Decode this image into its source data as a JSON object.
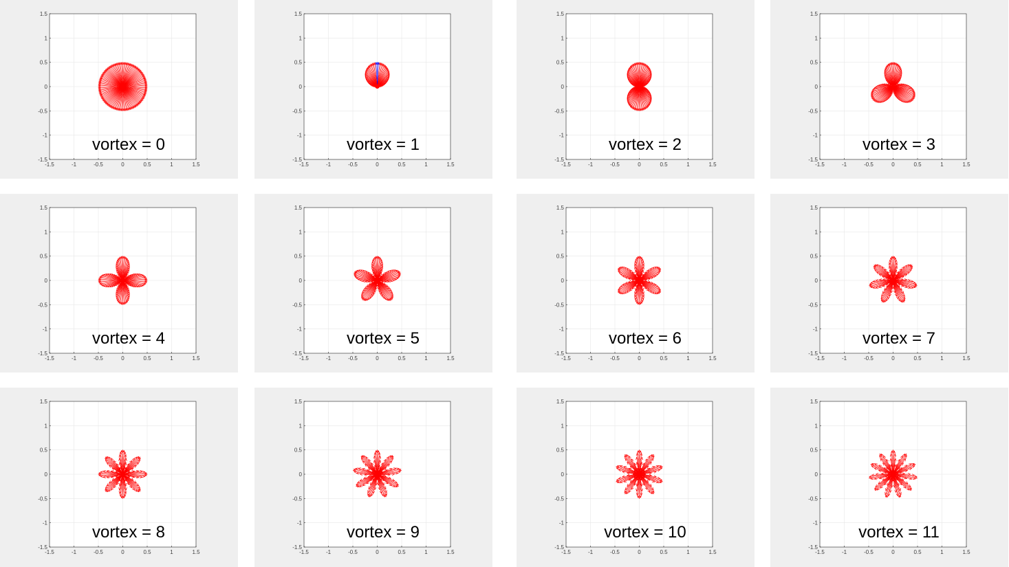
{
  "chart_data": [
    {
      "type": "quiver",
      "label": "vortex = 0",
      "vortex": 0,
      "xlim": [
        -1.5,
        1.5
      ],
      "ylim": [
        -1.5,
        1.5
      ],
      "xticks": [
        -1.5,
        -1,
        -0.5,
        0,
        0.5,
        1,
        1.5
      ],
      "yticks": [
        -1.5,
        -1,
        -0.5,
        0,
        0.5,
        1,
        1.5
      ],
      "tick_labels": [
        "-1.5",
        "-1",
        "-0.5",
        "0",
        "0.5",
        "1",
        "1.5"
      ],
      "grid": true,
      "arrow_color": "#ff0000"
    },
    {
      "type": "quiver",
      "label": "vortex = 1",
      "vortex": 1,
      "xlim": [
        -1.5,
        1.5
      ],
      "ylim": [
        -1.5,
        1.5
      ],
      "xticks": [
        -1.5,
        -1,
        -0.5,
        0,
        0.5,
        1,
        1.5
      ],
      "yticks": [
        -1.5,
        -1,
        -0.5,
        0,
        0.5,
        1,
        1.5
      ],
      "tick_labels": [
        "-1.5",
        "-1",
        "-0.5",
        "0",
        "0.5",
        "1",
        "1.5"
      ],
      "grid": true,
      "arrow_color": "#ff0000"
    },
    {
      "type": "quiver",
      "label": "vortex = 2",
      "vortex": 2,
      "xlim": [
        -1.5,
        1.5
      ],
      "ylim": [
        -1.5,
        1.5
      ],
      "xticks": [
        -1.5,
        -1,
        -0.5,
        0,
        0.5,
        1,
        1.5
      ],
      "yticks": [
        -1.5,
        -1,
        -0.5,
        0,
        0.5,
        1,
        1.5
      ],
      "tick_labels": [
        "-1.5",
        "-1",
        "-0.5",
        "0",
        "0.5",
        "1",
        "1.5"
      ],
      "grid": true,
      "arrow_color": "#ff0000"
    },
    {
      "type": "quiver",
      "label": "vortex = 3",
      "vortex": 3,
      "xlim": [
        -1.5,
        1.5
      ],
      "ylim": [
        -1.5,
        1.5
      ],
      "xticks": [
        -1.5,
        -1,
        -0.5,
        0,
        0.5,
        1,
        1.5
      ],
      "yticks": [
        -1.5,
        -1,
        -0.5,
        0,
        0.5,
        1,
        1.5
      ],
      "tick_labels": [
        "-1.5",
        "-1",
        "-0.5",
        "0",
        "0.5",
        "1",
        "1.5"
      ],
      "grid": true,
      "arrow_color": "#ff0000"
    },
    {
      "type": "quiver",
      "label": "vortex = 4",
      "vortex": 4,
      "xlim": [
        -1.5,
        1.5
      ],
      "ylim": [
        -1.5,
        1.5
      ],
      "xticks": [
        -1.5,
        -1,
        -0.5,
        0,
        0.5,
        1,
        1.5
      ],
      "yticks": [
        -1.5,
        -1,
        -0.5,
        0,
        0.5,
        1,
        1.5
      ],
      "tick_labels": [
        "-1.5",
        "-1",
        "-0.5",
        "0",
        "0.5",
        "1",
        "1.5"
      ],
      "grid": true,
      "arrow_color": "#ff0000"
    },
    {
      "type": "quiver",
      "label": "vortex = 5",
      "vortex": 5,
      "xlim": [
        -1.5,
        1.5
      ],
      "ylim": [
        -1.5,
        1.5
      ],
      "xticks": [
        -1.5,
        -1,
        -0.5,
        0,
        0.5,
        1,
        1.5
      ],
      "yticks": [
        -1.5,
        -1,
        -0.5,
        0,
        0.5,
        1,
        1.5
      ],
      "tick_labels": [
        "-1.5",
        "-1",
        "-0.5",
        "0",
        "0.5",
        "1",
        "1.5"
      ],
      "grid": true,
      "arrow_color": "#ff0000"
    },
    {
      "type": "quiver",
      "label": "vortex = 6",
      "vortex": 6,
      "xlim": [
        -1.5,
        1.5
      ],
      "ylim": [
        -1.5,
        1.5
      ],
      "xticks": [
        -1.5,
        -1,
        -0.5,
        0,
        0.5,
        1,
        1.5
      ],
      "yticks": [
        -1.5,
        -1,
        -0.5,
        0,
        0.5,
        1,
        1.5
      ],
      "tick_labels": [
        "-1.5",
        "-1",
        "-0.5",
        "0",
        "0.5",
        "1",
        "1.5"
      ],
      "grid": true,
      "arrow_color": "#ff0000"
    },
    {
      "type": "quiver",
      "label": "vortex = 7",
      "vortex": 7,
      "xlim": [
        -1.5,
        1.5
      ],
      "ylim": [
        -1.5,
        1.5
      ],
      "xticks": [
        -1.5,
        -1,
        -0.5,
        0,
        0.5,
        1,
        1.5
      ],
      "yticks": [
        -1.5,
        -1,
        -0.5,
        0,
        0.5,
        1,
        1.5
      ],
      "tick_labels": [
        "-1.5",
        "-1",
        "-0.5",
        "0",
        "0.5",
        "1",
        "1.5"
      ],
      "grid": true,
      "arrow_color": "#ff0000"
    },
    {
      "type": "quiver",
      "label": "vortex = 8",
      "vortex": 8,
      "xlim": [
        -1.5,
        1.5
      ],
      "ylim": [
        -1.5,
        1.5
      ],
      "xticks": [
        -1.5,
        -1,
        -0.5,
        0,
        0.5,
        1,
        1.5
      ],
      "yticks": [
        -1.5,
        -1,
        -0.5,
        0,
        0.5,
        1,
        1.5
      ],
      "tick_labels": [
        "-1.5",
        "-1",
        "-0.5",
        "0",
        "0.5",
        "1",
        "1.5"
      ],
      "grid": true,
      "arrow_color": "#ff0000"
    },
    {
      "type": "quiver",
      "label": "vortex = 9",
      "vortex": 9,
      "xlim": [
        -1.5,
        1.5
      ],
      "ylim": [
        -1.5,
        1.5
      ],
      "xticks": [
        -1.5,
        -1,
        -0.5,
        0,
        0.5,
        1,
        1.5
      ],
      "yticks": [
        -1.5,
        -1,
        -0.5,
        0,
        0.5,
        1,
        1.5
      ],
      "tick_labels": [
        "-1.5",
        "-1",
        "-0.5",
        "0",
        "0.5",
        "1",
        "1.5"
      ],
      "grid": true,
      "arrow_color": "#ff0000"
    },
    {
      "type": "quiver",
      "label": "vortex = 10",
      "vortex": 10,
      "xlim": [
        -1.5,
        1.5
      ],
      "ylim": [
        -1.5,
        1.5
      ],
      "xticks": [
        -1.5,
        -1,
        -0.5,
        0,
        0.5,
        1,
        1.5
      ],
      "yticks": [
        -1.5,
        -1,
        -0.5,
        0,
        0.5,
        1,
        1.5
      ],
      "tick_labels": [
        "-1.5",
        "-1",
        "-0.5",
        "0",
        "0.5",
        "1",
        "1.5"
      ],
      "grid": true,
      "arrow_color": "#ff0000"
    },
    {
      "type": "quiver",
      "label": "vortex = 11",
      "vortex": 11,
      "xlim": [
        -1.5,
        1.5
      ],
      "ylim": [
        -1.5,
        1.5
      ],
      "xticks": [
        -1.5,
        -1,
        -0.5,
        0,
        0.5,
        1,
        1.5
      ],
      "yticks": [
        -1.5,
        -1,
        -0.5,
        0,
        0.5,
        1,
        1.5
      ],
      "tick_labels": [
        "-1.5",
        "-1",
        "-0.5",
        "0",
        "0.5",
        "1",
        "1.5"
      ],
      "grid": true,
      "arrow_color": "#ff0000"
    }
  ]
}
